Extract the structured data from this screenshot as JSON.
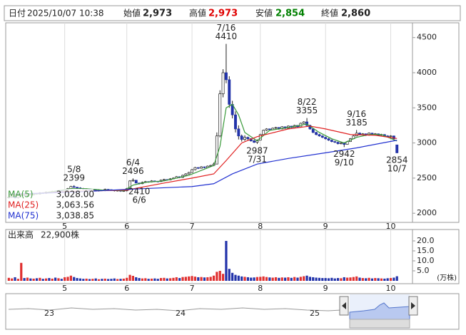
{
  "header": {
    "items": [
      {
        "label": "日付",
        "value": "2025/10/07 10:38"
      },
      {
        "label": "始値",
        "value": "2,973"
      },
      {
        "label": "高値",
        "value": "2,973",
        "color": "#e00000"
      },
      {
        "label": "安値",
        "value": "2,854",
        "color": "#008000"
      },
      {
        "label": "終値",
        "value": "2,860"
      }
    ]
  },
  "chart_data": [
    {
      "type": "candlestick",
      "xlim": [
        -1,
        130
      ],
      "ylim": [
        1870,
        4700
      ],
      "yticks": [
        2000,
        2500,
        3000,
        3500,
        4000,
        4500
      ],
      "grid": true,
      "xticks": [
        {
          "value": 18,
          "label": "5"
        },
        {
          "value": 38,
          "label": "6"
        },
        {
          "value": 59,
          "label": "7"
        },
        {
          "value": 81,
          "label": "8"
        },
        {
          "value": 102,
          "label": "9"
        },
        {
          "value": 123,
          "label": "10"
        }
      ],
      "up_color": "#ffffff",
      "down_color": "#2233aa",
      "candles": [
        [
          2220,
          2240,
          2210,
          2230
        ],
        [
          2230,
          2250,
          2220,
          2240
        ],
        [
          2240,
          2250,
          2210,
          2220
        ],
        [
          2220,
          2260,
          2210,
          2250
        ],
        [
          2250,
          2270,
          2240,
          2260
        ],
        [
          2260,
          2270,
          2245,
          2255
        ],
        [
          2255,
          2280,
          2245,
          2270
        ],
        [
          2270,
          2280,
          2255,
          2265
        ],
        [
          2265,
          2290,
          2255,
          2280
        ],
        [
          2280,
          2290,
          2265,
          2275
        ],
        [
          2275,
          2300,
          2265,
          2290
        ],
        [
          2290,
          2300,
          2275,
          2285
        ],
        [
          2285,
          2310,
          2275,
          2300
        ],
        [
          2300,
          2310,
          2285,
          2295
        ],
        [
          2295,
          2320,
          2285,
          2310
        ],
        [
          2310,
          2320,
          2290,
          2300
        ],
        [
          2300,
          2330,
          2290,
          2320
        ],
        [
          2320,
          2330,
          2305,
          2315
        ],
        [
          2315,
          2340,
          2305,
          2330
        ],
        [
          2330,
          2360,
          2320,
          2350
        ],
        [
          2350,
          2390,
          2340,
          2380
        ],
        [
          2380,
          2399,
          2360,
          2370
        ],
        [
          2370,
          2375,
          2350,
          2360
        ],
        [
          2360,
          2370,
          2340,
          2350
        ],
        [
          2350,
          2360,
          2330,
          2340
        ],
        [
          2340,
          2355,
          2330,
          2345
        ],
        [
          2345,
          2350,
          2320,
          2330
        ],
        [
          2330,
          2345,
          2320,
          2335
        ],
        [
          2335,
          2340,
          2310,
          2320
        ],
        [
          2320,
          2340,
          2310,
          2330
        ],
        [
          2330,
          2335,
          2315,
          2325
        ],
        [
          2325,
          2350,
          2315,
          2340
        ],
        [
          2340,
          2345,
          2325,
          2335
        ],
        [
          2335,
          2340,
          2320,
          2330
        ],
        [
          2330,
          2335,
          2310,
          2320
        ],
        [
          2320,
          2335,
          2310,
          2325
        ],
        [
          2325,
          2330,
          2305,
          2315
        ],
        [
          2315,
          2330,
          2305,
          2320
        ],
        [
          2320,
          2360,
          2310,
          2350
        ],
        [
          2350,
          2470,
          2345,
          2460
        ],
        [
          2460,
          2496,
          2450,
          2470
        ],
        [
          2470,
          2475,
          2425,
          2430
        ],
        [
          2430,
          2435,
          2410,
          2420
        ],
        [
          2420,
          2450,
          2415,
          2440
        ],
        [
          2440,
          2460,
          2430,
          2450
        ],
        [
          2450,
          2455,
          2435,
          2445
        ],
        [
          2445,
          2470,
          2440,
          2460
        ],
        [
          2460,
          2465,
          2445,
          2455
        ],
        [
          2455,
          2460,
          2440,
          2450
        ],
        [
          2450,
          2480,
          2445,
          2470
        ],
        [
          2470,
          2490,
          2465,
          2480
        ],
        [
          2480,
          2485,
          2465,
          2475
        ],
        [
          2475,
          2500,
          2470,
          2490
        ],
        [
          2490,
          2510,
          2485,
          2500
        ],
        [
          2500,
          2530,
          2495,
          2520
        ],
        [
          2520,
          2525,
          2500,
          2510
        ],
        [
          2510,
          2550,
          2505,
          2540
        ],
        [
          2540,
          2570,
          2535,
          2560
        ],
        [
          2560,
          2590,
          2550,
          2580
        ],
        [
          2580,
          2630,
          2575,
          2620
        ],
        [
          2620,
          2660,
          2610,
          2650
        ],
        [
          2650,
          2655,
          2630,
          2640
        ],
        [
          2640,
          2670,
          2635,
          2660
        ],
        [
          2660,
          2665,
          2640,
          2650
        ],
        [
          2650,
          2680,
          2645,
          2670
        ],
        [
          2670,
          2690,
          2660,
          2680
        ],
        [
          2680,
          2720,
          2670,
          2700
        ],
        [
          2700,
          3150,
          2700,
          3100
        ],
        [
          3100,
          3750,
          3080,
          3700
        ],
        [
          3700,
          4050,
          3650,
          4000
        ],
        [
          4000,
          4410,
          3850,
          3900
        ],
        [
          3900,
          3950,
          3500,
          3550
        ],
        [
          3550,
          3600,
          3350,
          3400
        ],
        [
          3400,
          3450,
          3150,
          3200
        ],
        [
          3200,
          3250,
          3050,
          3100
        ],
        [
          3100,
          3120,
          3020,
          3050
        ],
        [
          3050,
          3110,
          3030,
          3080
        ],
        [
          3080,
          3090,
          3040,
          3060
        ],
        [
          3060,
          3070,
          3020,
          3030
        ],
        [
          3030,
          3050,
          3000,
          3010
        ],
        [
          3010,
          3050,
          2987,
          3040
        ],
        [
          3040,
          3130,
          3035,
          3120
        ],
        [
          3120,
          3190,
          3110,
          3180
        ],
        [
          3180,
          3210,
          3170,
          3200
        ],
        [
          3200,
          3205,
          3180,
          3190
        ],
        [
          3190,
          3220,
          3185,
          3210
        ],
        [
          3210,
          3230,
          3200,
          3220
        ],
        [
          3220,
          3225,
          3190,
          3200
        ],
        [
          3200,
          3240,
          3195,
          3230
        ],
        [
          3230,
          3235,
          3200,
          3210
        ],
        [
          3210,
          3250,
          3205,
          3240
        ],
        [
          3240,
          3245,
          3215,
          3220
        ],
        [
          3220,
          3260,
          3215,
          3250
        ],
        [
          3250,
          3255,
          3220,
          3230
        ],
        [
          3230,
          3290,
          3225,
          3280
        ],
        [
          3280,
          3310,
          3270,
          3300
        ],
        [
          3300,
          3355,
          3240,
          3250
        ],
        [
          3250,
          3260,
          3190,
          3200
        ],
        [
          3200,
          3210,
          3140,
          3150
        ],
        [
          3150,
          3160,
          3110,
          3120
        ],
        [
          3120,
          3130,
          3090,
          3100
        ],
        [
          3100,
          3110,
          3070,
          3080
        ],
        [
          3080,
          3090,
          3050,
          3060
        ],
        [
          3060,
          3070,
          3030,
          3040
        ],
        [
          3040,
          3050,
          3010,
          3020
        ],
        [
          3020,
          3030,
          3000,
          3010
        ],
        [
          3010,
          3020,
          2980,
          2990
        ],
        [
          2990,
          3010,
          2980,
          3000
        ],
        [
          3000,
          3010,
          2942,
          2980
        ],
        [
          2980,
          3030,
          2975,
          3020
        ],
        [
          3020,
          3070,
          3015,
          3060
        ],
        [
          3060,
          3110,
          3055,
          3100
        ],
        [
          3100,
          3185,
          3095,
          3140
        ],
        [
          3140,
          3150,
          3110,
          3120
        ],
        [
          3120,
          3140,
          3110,
          3130
        ],
        [
          3130,
          3135,
          3100,
          3110
        ],
        [
          3110,
          3150,
          3105,
          3140
        ],
        [
          3140,
          3145,
          3110,
          3120
        ],
        [
          3120,
          3140,
          3115,
          3130
        ],
        [
          3130,
          3135,
          3100,
          3110
        ],
        [
          3110,
          3130,
          3105,
          3120
        ],
        [
          3120,
          3125,
          3090,
          3100
        ],
        [
          3100,
          3110,
          3080,
          3090
        ],
        [
          3090,
          3110,
          3060,
          3100
        ],
        [
          3100,
          3105,
          3040,
          3060
        ],
        [
          2973,
          2973,
          2854,
          2860
        ]
      ],
      "series": [
        {
          "name": "MA(5)",
          "color": "#3a9a3a",
          "value_label": "3,028.00",
          "points": [
            [
              0,
              2240
            ],
            [
              10,
              2280
            ],
            [
              20,
              2350
            ],
            [
              25,
              2350
            ],
            [
              30,
              2330
            ],
            [
              37,
              2320
            ],
            [
              40,
              2400
            ],
            [
              44,
              2440
            ],
            [
              50,
              2460
            ],
            [
              58,
              2540
            ],
            [
              66,
              2680
            ],
            [
              68,
              2950
            ],
            [
              70,
              3500
            ],
            [
              72,
              3550
            ],
            [
              74,
              3400
            ],
            [
              76,
              3150
            ],
            [
              80,
              3030
            ],
            [
              84,
              3180
            ],
            [
              90,
              3220
            ],
            [
              96,
              3270
            ],
            [
              100,
              3150
            ],
            [
              104,
              3060
            ],
            [
              108,
              3000
            ],
            [
              112,
              3080
            ],
            [
              116,
              3120
            ],
            [
              120,
              3120
            ],
            [
              125,
              3028
            ]
          ]
        },
        {
          "name": "MA(25)",
          "color": "#e02020",
          "value_label": "3,063.56",
          "points": [
            [
              0,
              2260
            ],
            [
              20,
              2310
            ],
            [
              38,
              2330
            ],
            [
              50,
              2430
            ],
            [
              59,
              2500
            ],
            [
              66,
              2560
            ],
            [
              70,
              2750
            ],
            [
              75,
              3000
            ],
            [
              80,
              3090
            ],
            [
              90,
              3200
            ],
            [
              97,
              3240
            ],
            [
              102,
              3200
            ],
            [
              110,
              3120
            ],
            [
              118,
              3110
            ],
            [
              125,
              3064
            ]
          ]
        },
        {
          "name": "MA(75)",
          "color": "#2030d0",
          "value_label": "3,038.85",
          "points": [
            [
              0,
              2270
            ],
            [
              20,
              2300
            ],
            [
              38,
              2340
            ],
            [
              59,
              2380
            ],
            [
              66,
              2420
            ],
            [
              72,
              2560
            ],
            [
              80,
              2700
            ],
            [
              90,
              2780
            ],
            [
              102,
              2860
            ],
            [
              112,
              2930
            ],
            [
              125,
              3039
            ]
          ]
        }
      ],
      "annotations": [
        {
          "date": "5/8",
          "value": 2399,
          "index": 21,
          "side": "high"
        },
        {
          "date": "6/4",
          "value": 2496,
          "index": 40,
          "side": "high"
        },
        {
          "date": "6/6",
          "value": 2410,
          "index": 42,
          "side": "low"
        },
        {
          "date": "7/16",
          "value": 4410,
          "index": 70,
          "side": "high"
        },
        {
          "date": "7/31",
          "value": 2987,
          "index": 80,
          "side": "low"
        },
        {
          "date": "8/22",
          "value": 3355,
          "index": 96,
          "side": "high"
        },
        {
          "date": "9/10",
          "value": 2942,
          "index": 108,
          "side": "low"
        },
        {
          "date": "9/16",
          "value": 3185,
          "index": 112,
          "side": "high"
        },
        {
          "date": "10/7",
          "value": 2854,
          "index": 125,
          "side": "low"
        }
      ]
    },
    {
      "type": "bar",
      "title": "出来高",
      "value_label": "22,900株",
      "unit": "(万株)",
      "xlim": [
        -1,
        130
      ],
      "ylim": [
        0,
        25
      ],
      "yticks": [
        {
          "value": 5,
          "label": "5.0"
        },
        {
          "value": 10,
          "label": "10.0"
        },
        {
          "value": 15,
          "label": "15.0"
        },
        {
          "value": 20,
          "label": "20.0"
        }
      ],
      "xticks": [
        {
          "value": 18,
          "label": "5"
        },
        {
          "value": 38,
          "label": "6"
        },
        {
          "value": 59,
          "label": "7"
        },
        {
          "value": 81,
          "label": "8"
        },
        {
          "value": 102,
          "label": "9"
        },
        {
          "value": 123,
          "label": "10"
        }
      ],
      "up_color": "#e03030",
      "down_color": "#2233aa",
      "values": [
        1.5,
        1.2,
        1.8,
        1.0,
        9.0,
        1.4,
        1.6,
        1.2,
        1.1,
        1.3,
        1.5,
        1.0,
        1.2,
        1.4,
        1.1,
        1.6,
        1.3,
        1.0,
        1.8,
        2.0,
        2.6,
        1.9,
        1.4,
        1.2,
        1.0,
        1.1,
        0.9,
        1.0,
        1.2,
        0.8,
        1.0,
        1.1,
        0.9,
        1.0,
        1.2,
        0.9,
        1.0,
        1.1,
        1.5,
        3.0,
        2.5,
        1.8,
        1.4,
        1.2,
        1.3,
        1.0,
        1.1,
        1.2,
        1.0,
        1.4,
        1.5,
        1.2,
        1.3,
        1.5,
        1.8,
        1.4,
        1.9,
        2.0,
        2.2,
        2.4,
        2.1,
        1.8,
        1.9,
        1.7,
        1.8,
        2.0,
        2.6,
        4.5,
        5.0,
        3.5,
        20.0,
        6.0,
        4.0,
        3.0,
        2.6,
        2.2,
        2.0,
        1.8,
        1.6,
        1.7,
        1.9,
        2.0,
        2.2,
        1.9,
        1.7,
        1.6,
        1.8,
        1.5,
        1.7,
        1.6,
        1.8,
        1.5,
        1.9,
        1.6,
        2.0,
        2.3,
        2.6,
        2.0,
        1.8,
        1.6,
        1.5,
        1.4,
        1.4,
        1.3,
        1.5,
        1.2,
        1.4,
        1.3,
        1.8,
        1.6,
        1.7,
        1.9,
        2.2,
        1.6,
        1.4,
        1.3,
        1.5,
        1.2,
        1.4,
        1.3,
        1.2,
        1.1,
        1.3,
        1.4,
        1.6,
        2.29
      ]
    }
  ],
  "navigator": {
    "labels": [
      "23",
      "24",
      "25"
    ]
  }
}
